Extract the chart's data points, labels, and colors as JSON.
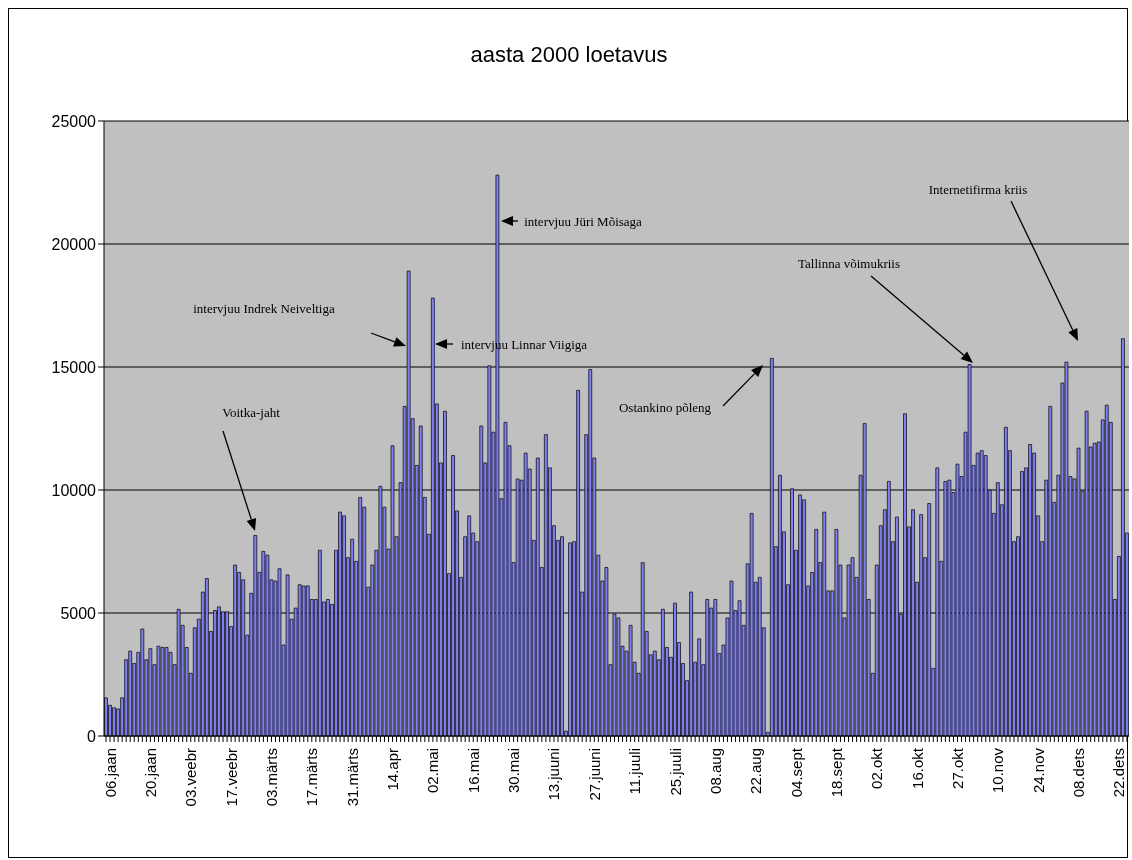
{
  "chart_data": {
    "type": "bar",
    "title": "aasta 2000 loetavus",
    "categories": [
      null,
      "06.jaan",
      null,
      null,
      null,
      null,
      null,
      null,
      null,
      null,
      null,
      "20.jaan",
      null,
      null,
      null,
      null,
      null,
      null,
      null,
      null,
      null,
      "03.veebr",
      null,
      null,
      null,
      null,
      null,
      null,
      null,
      null,
      null,
      "17.veebr",
      null,
      null,
      null,
      null,
      null,
      null,
      null,
      null,
      null,
      "03.märts",
      null,
      null,
      null,
      null,
      null,
      null,
      null,
      null,
      null,
      "17.märts",
      null,
      null,
      null,
      null,
      null,
      null,
      null,
      null,
      null,
      "31.märts",
      null,
      null,
      null,
      null,
      null,
      null,
      null,
      null,
      null,
      "14.apr",
      null,
      null,
      null,
      null,
      null,
      null,
      null,
      null,
      null,
      "02.mai",
      null,
      null,
      null,
      null,
      null,
      null,
      null,
      null,
      null,
      "16.mai",
      null,
      null,
      null,
      null,
      null,
      null,
      null,
      null,
      null,
      "30.mai",
      null,
      null,
      null,
      null,
      null,
      null,
      null,
      null,
      null,
      "13.juuni",
      null,
      null,
      null,
      null,
      null,
      null,
      null,
      null,
      null,
      "27.juuni",
      null,
      null,
      null,
      null,
      null,
      null,
      null,
      null,
      null,
      "11.juuli",
      null,
      null,
      null,
      null,
      null,
      null,
      null,
      null,
      null,
      "25.juuli",
      null,
      null,
      null,
      null,
      null,
      null,
      null,
      null,
      null,
      "08.aug",
      null,
      null,
      null,
      null,
      null,
      null,
      null,
      null,
      null,
      "22.aug",
      null,
      null,
      null,
      null,
      null,
      null,
      null,
      null,
      null,
      "04.sept",
      null,
      null,
      null,
      null,
      null,
      null,
      null,
      null,
      null,
      "18.sept",
      null,
      null,
      null,
      null,
      null,
      null,
      null,
      null,
      null,
      "02.okt",
      null,
      null,
      null,
      null,
      null,
      null,
      null,
      null,
      null,
      "16.okt",
      null,
      null,
      null,
      null,
      null,
      null,
      null,
      null,
      null,
      "27.okt",
      null,
      null,
      null,
      null,
      null,
      null,
      null,
      null,
      null,
      "10.nov",
      null,
      null,
      null,
      null,
      null,
      null,
      null,
      null,
      null,
      "24.nov",
      null,
      null,
      null,
      null,
      null,
      null,
      null,
      null,
      null,
      "08.dets",
      null,
      null,
      null,
      null,
      null,
      null,
      null,
      null,
      null,
      "22.dets",
      null,
      null
    ],
    "values": [
      1550,
      1250,
      1150,
      1100,
      1550,
      3100,
      3450,
      2950,
      3400,
      4350,
      3100,
      3550,
      2900,
      3650,
      3600,
      3600,
      3400,
      2900,
      5150,
      4500,
      3600,
      2550,
      4400,
      4750,
      5850,
      6400,
      4250,
      5100,
      5250,
      5050,
      5050,
      4450,
      6950,
      6650,
      6350,
      4100,
      5800,
      8150,
      6650,
      7500,
      7350,
      6350,
      6300,
      6800,
      3700,
      6550,
      4750,
      5200,
      6150,
      6100,
      6100,
      5550,
      5550,
      7550,
      5450,
      5550,
      5350,
      7550,
      9100,
      8950,
      7250,
      8000,
      7100,
      9700,
      9300,
      6050,
      6950,
      7550,
      10150,
      9300,
      7600,
      11800,
      8100,
      10300,
      13400,
      18900,
      12900,
      11000,
      12600,
      9700,
      8200,
      17800,
      13500,
      11100,
      13200,
      6600,
      11400,
      9150,
      6450,
      8100,
      8950,
      8250,
      7900,
      12600,
      11100,
      15050,
      12350,
      22800,
      9650,
      12750,
      11800,
      7050,
      10450,
      10400,
      11500,
      10850,
      7950,
      11300,
      6850,
      12250,
      10900,
      8550,
      7950,
      8100,
      200,
      7850,
      7900,
      14050,
      5850,
      12250,
      14900,
      11300,
      7350,
      6300,
      6850,
      2900,
      4950,
      4800,
      3650,
      3450,
      4500,
      3000,
      2550,
      7050,
      4250,
      3300,
      3450,
      3100,
      5150,
      3600,
      3200,
      5400,
      3800,
      2950,
      2250,
      5850,
      3000,
      3950,
      2900,
      5550,
      5200,
      5550,
      3350,
      3700,
      4800,
      6300,
      5100,
      5500,
      4500,
      7000,
      9050,
      6250,
      6450,
      4400,
      150,
      15350,
      7700,
      10600,
      8300,
      6150,
      10050,
      7550,
      9800,
      9600,
      6100,
      6650,
      8400,
      7050,
      9100,
      5900,
      5900,
      8400,
      6950,
      4800,
      6950,
      7250,
      6450,
      10600,
      12700,
      5550,
      2550,
      6950,
      8550,
      9200,
      10350,
      7900,
      8900,
      4950,
      13100,
      8500,
      9200,
      6250,
      9000,
      7250,
      9450,
      2750,
      10900,
      7100,
      10350,
      10400,
      9900,
      11050,
      10550,
      12350,
      15100,
      11000,
      11500,
      11600,
      11400,
      10000,
      9050,
      10300,
      9400,
      12550,
      11600,
      7900,
      8100,
      10750,
      10900,
      11850,
      11500,
      8950,
      7900,
      10400,
      13400,
      9500,
      10600,
      14350,
      15200,
      10550,
      10450,
      11700,
      9950,
      13200,
      11750,
      11900,
      11950,
      12850,
      13450,
      12750,
      5550,
      7300,
      16150,
      8250
    ],
    "color": "#8080f0",
    "ylim": [
      0,
      25000
    ],
    "yticks": [
      0,
      5000,
      10000,
      15000,
      20000,
      25000
    ],
    "grid": "y",
    "annotations": [
      "Voitka-jaht",
      "intervjuu Indrek Neiveltiga",
      "intervjuu Linnar Viigiga",
      "intervjuu Jüri Mõisaga",
      "Ostankino põleng",
      "Tallinna võimukriis",
      "Internetifirma kriis"
    ]
  }
}
